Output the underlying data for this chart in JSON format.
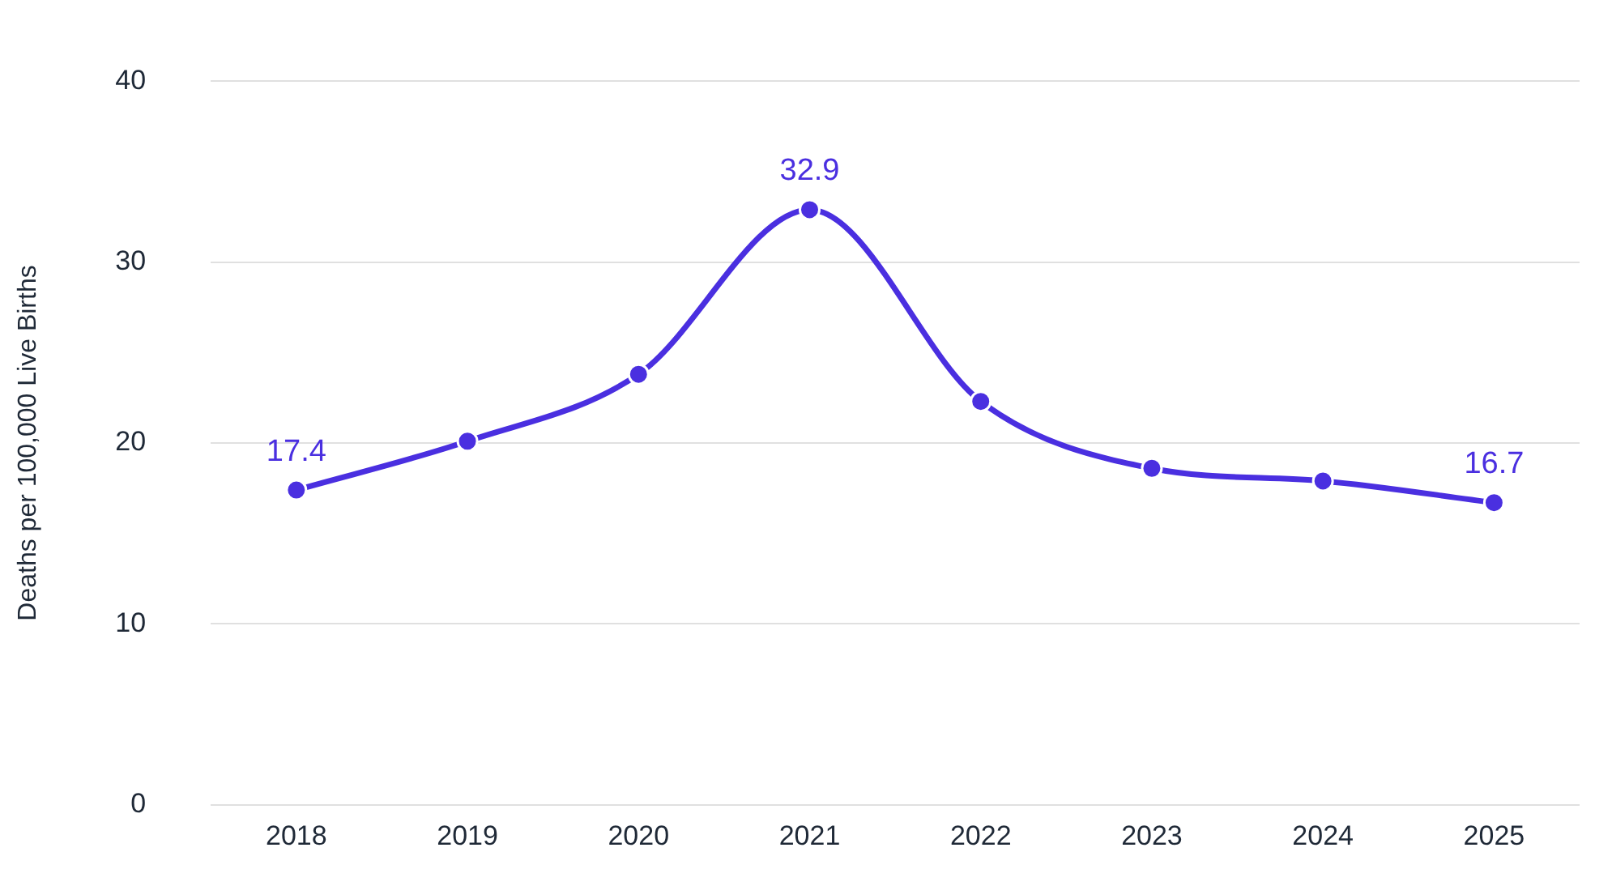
{
  "chart_data": {
    "type": "line",
    "ylabel": "Deaths per 100,000 Live Births",
    "categories": [
      "2018",
      "2019",
      "2020",
      "2021",
      "2022",
      "2023",
      "2024",
      "2025"
    ],
    "series": [
      {
        "color": "#4a2fe0",
        "values": [
          17.4,
          20.1,
          23.8,
          32.9,
          22.3,
          18.6,
          17.9,
          16.7
        ],
        "value_labels": [
          "17.4",
          null,
          null,
          "32.9",
          null,
          null,
          null,
          "16.7"
        ]
      }
    ],
    "ylim": [
      0,
      40
    ],
    "yticks": [
      0,
      10,
      20,
      30,
      40
    ],
    "grid": "y",
    "legend": false,
    "marker": "circle",
    "line_style": "solid"
  }
}
